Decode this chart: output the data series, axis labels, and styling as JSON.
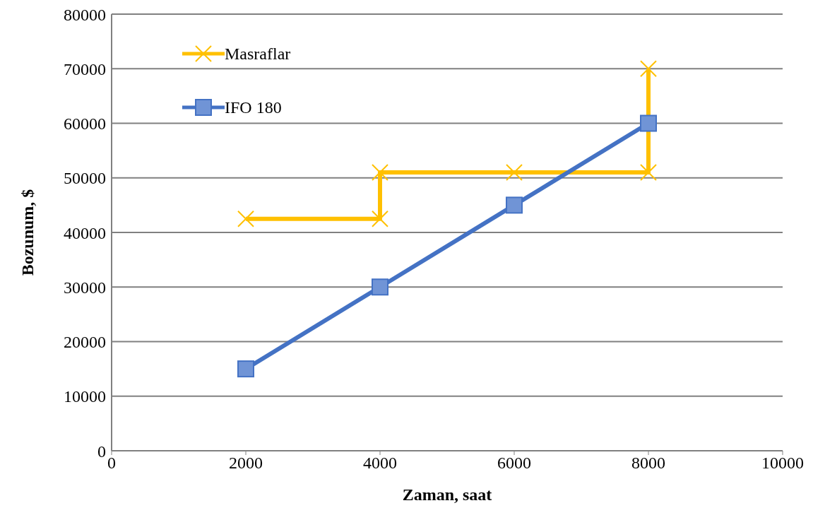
{
  "chart_data": {
    "type": "line",
    "xlabel": "Zaman, saat",
    "ylabel": "Bozunum, $",
    "xlim": [
      0,
      10000
    ],
    "xticks": [
      0,
      2000,
      4000,
      6000,
      8000,
      10000
    ],
    "ylim": [
      0,
      80000
    ],
    "yticks": [
      0,
      10000,
      20000,
      30000,
      40000,
      50000,
      60000,
      70000,
      80000
    ],
    "grid": "y",
    "legend": "top left",
    "line_style": "solid",
    "series": [
      {
        "name": "Masraflar",
        "color": "#ffc000",
        "marker": "cross",
        "x": [
          2000,
          4000,
          4000,
          6000,
          8000,
          8000
        ],
        "values": [
          42500,
          42500,
          51000,
          51000,
          51000,
          70000
        ]
      },
      {
        "name": "IFO 180",
        "color": "#4472c4",
        "marker": "square",
        "x": [
          2000,
          4000,
          6000,
          8000
        ],
        "values": [
          15000,
          30000,
          45000,
          60000
        ]
      }
    ]
  }
}
